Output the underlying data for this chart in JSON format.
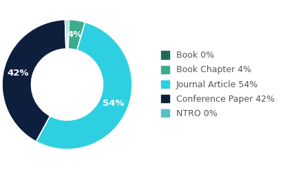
{
  "labels": [
    "Book",
    "Book Chapter",
    "Journal Article",
    "Conference Paper",
    "NTRO"
  ],
  "values": [
    0.5,
    4,
    54,
    42,
    0.5
  ],
  "colors": [
    "#1e6b55",
    "#3aab8c",
    "#2ecfe0",
    "#0d1f3c",
    "#5bbec8"
  ],
  "legend_labels": [
    "Book 0%",
    "Book Chapter 4%",
    "Journal Article 54%",
    "Conference Paper 42%",
    "NTRO 0%"
  ],
  "wedge_labels": [
    "",
    "4%",
    "54%",
    "42%",
    ""
  ],
  "background_color": "#ffffff",
  "donut_hole_ratio": 0.55,
  "label_fontsize": 9.5,
  "legend_fontsize": 9,
  "text_color": "#555555"
}
